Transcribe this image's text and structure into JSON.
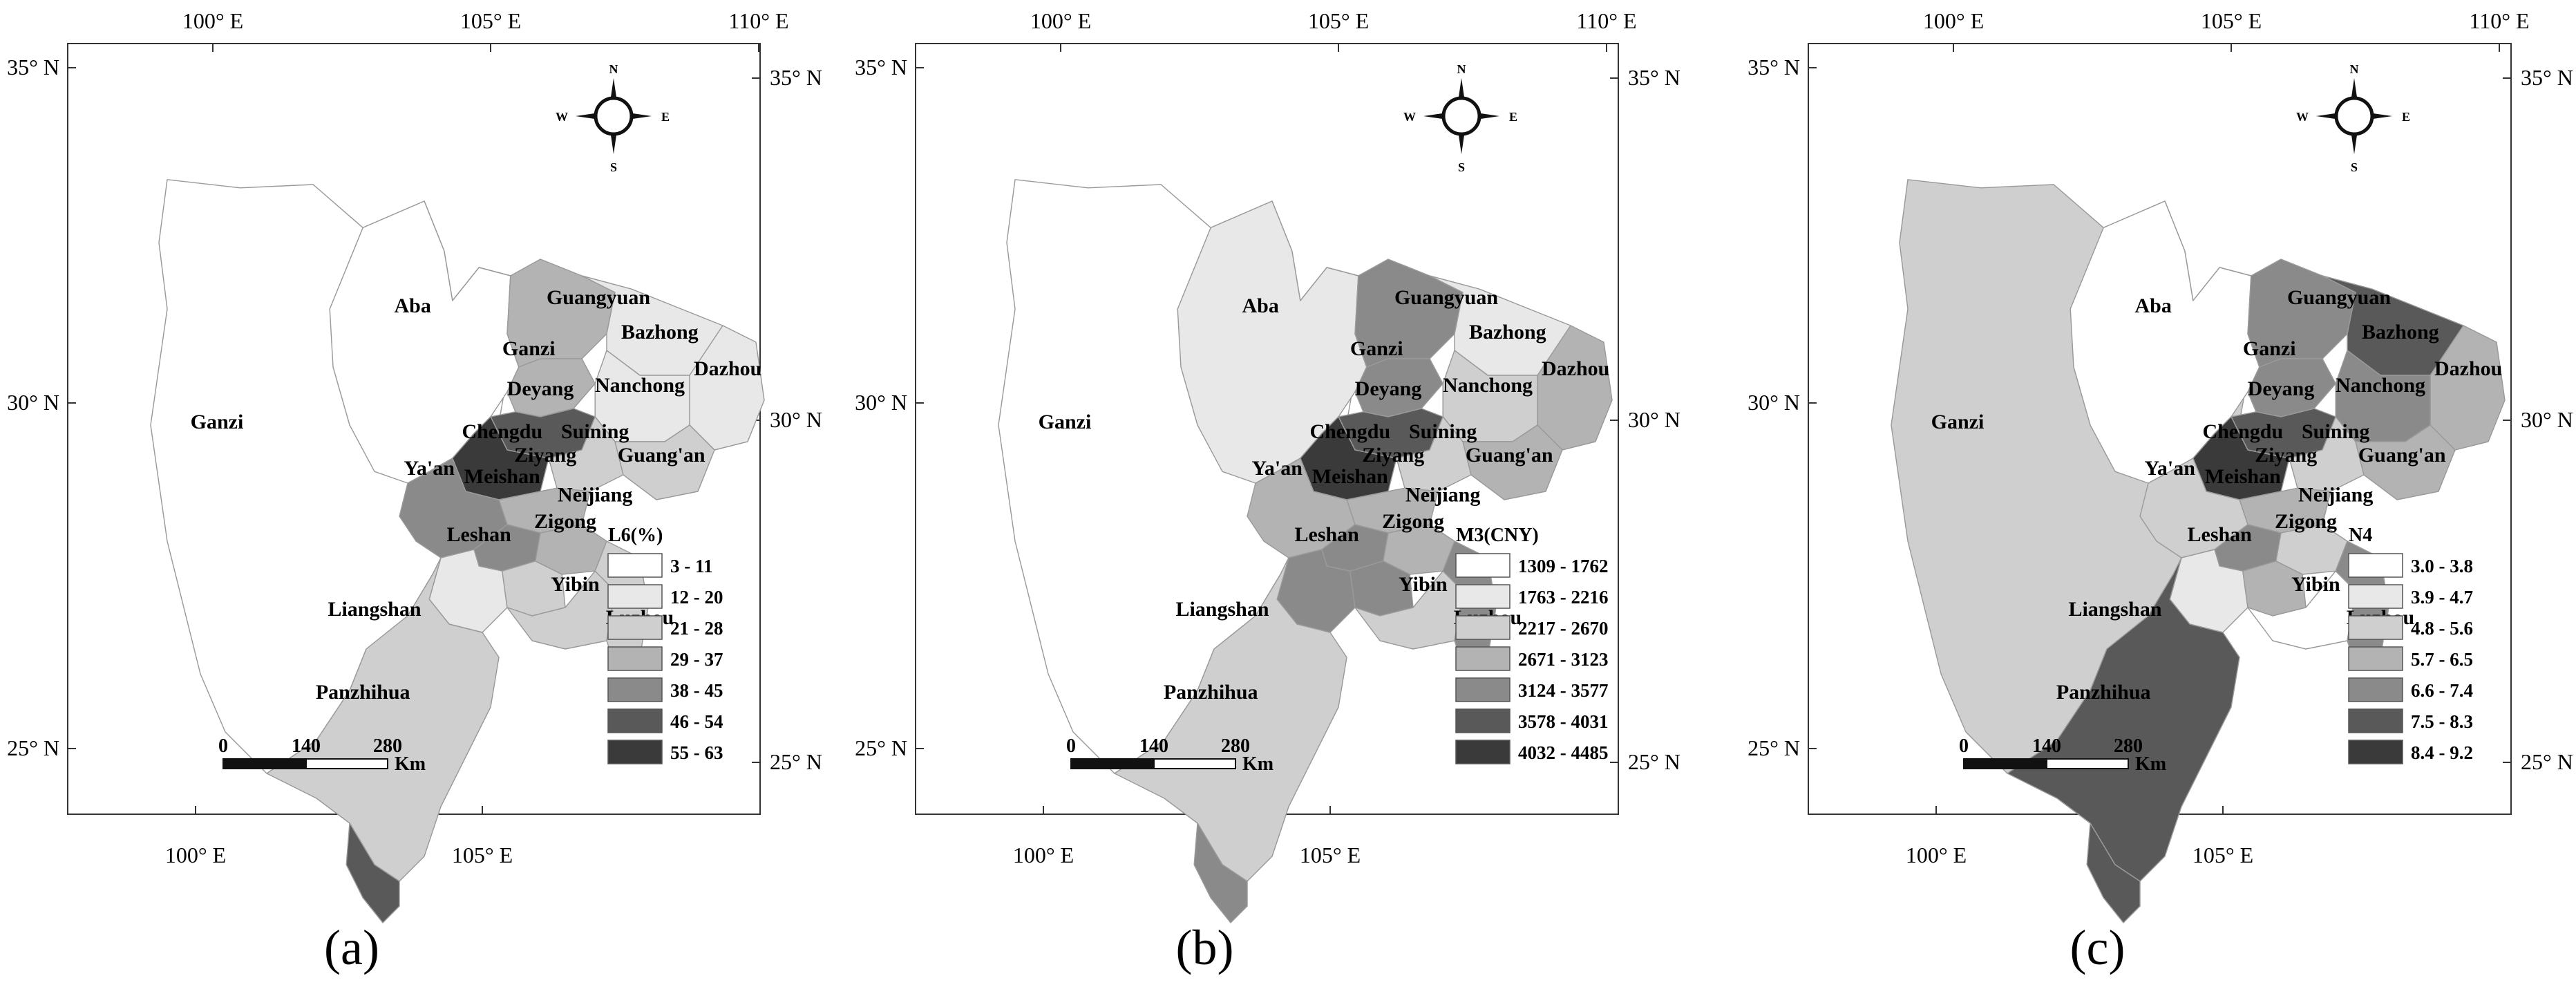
{
  "panels": [
    {
      "label": "(a)",
      "legend_title": "L6(%)",
      "classes": [
        "3 - 11",
        "12 - 20",
        "21 - 28",
        "29 - 37",
        "38 - 45",
        "46 - 54",
        "55 - 63"
      ],
      "top_lon_ticks": [
        "100° E",
        "105° E",
        "110° E"
      ],
      "bottom_lon_ticks": [
        "100° E",
        "105° E"
      ],
      "left_lat_ticks": [
        "35° N",
        "30° N",
        "25° N"
      ],
      "right_lat_ticks": [
        "35° N",
        "30° N",
        "25° N"
      ],
      "region_class": {
        "Ganzi": 0,
        "Aba": 0,
        "Guangyuan": 3,
        "Bazhong": 1,
        "Dazhou": 1,
        "Nanchong": 1,
        "Mianyang": 3,
        "Deyang": 5,
        "Chengdu": 6,
        "Suining": 2,
        "Ziyang": 3,
        "Guangan": 2,
        "Yaan": 4,
        "Meishan": 4,
        "Neijiang": 3,
        "Leshan": 1,
        "Zigong": 2,
        "Yibin": 2,
        "Luzhou": 2,
        "Liangshan": 2,
        "Panzhihua": 5
      }
    },
    {
      "label": "(b)",
      "legend_title": "M3(CNY)",
      "classes": [
        "1309 - 1762",
        "1763 - 2216",
        "2217 - 2670",
        "2671 - 3123",
        "3124 - 3577",
        "3578 - 4031",
        "4032 - 4485"
      ],
      "top_lon_ticks": [
        "100° E",
        "105° E",
        "110° E"
      ],
      "bottom_lon_ticks": [
        "100° E",
        "105° E"
      ],
      "left_lat_ticks": [
        "35° N",
        "30° N",
        "25° N"
      ],
      "right_lat_ticks": [
        "35° N",
        "30° N",
        "25° N"
      ],
      "region_class": {
        "Ganzi": 0,
        "Aba": 1,
        "Guangyuan": 4,
        "Bazhong": 1,
        "Dazhou": 3,
        "Nanchong": 2,
        "Mianyang": 4,
        "Deyang": 5,
        "Chengdu": 6,
        "Suining": 2,
        "Ziyang": 3,
        "Guangan": 3,
        "Yaan": 3,
        "Meishan": 4,
        "Neijiang": 3,
        "Leshan": 4,
        "Zigong": 4,
        "Yibin": 2,
        "Luzhou": 4,
        "Liangshan": 2,
        "Panzhihua": 4
      }
    },
    {
      "label": "(c)",
      "legend_title": "N4",
      "classes": [
        "3.0 - 3.8",
        "3.9 - 4.7",
        "4.8 - 5.6",
        "5.7 - 6.5",
        "6.6 - 7.4",
        "7.5 - 8.3",
        "8.4 - 9.2"
      ],
      "top_lon_ticks": [
        "100° E",
        "105° E",
        "110° E"
      ],
      "bottom_lon_ticks": [
        "100° E",
        "105° E"
      ],
      "left_lat_ticks": [
        "35° N",
        "30° N",
        "25° N"
      ],
      "right_lat_ticks": [
        "35° N",
        "30° N",
        "25° N"
      ],
      "region_class": {
        "Ganzi": 2,
        "Aba": 0,
        "Guangyuan": 4,
        "Bazhong": 5,
        "Dazhou": 3,
        "Nanchong": 4,
        "Mianyang": 4,
        "Deyang": 5,
        "Chengdu": 6,
        "Suining": 2,
        "Ziyang": 3,
        "Guangan": 3,
        "Yaan": 2,
        "Meishan": 4,
        "Neijiang": 2,
        "Leshan": 1,
        "Zigong": 3,
        "Yibin": 0,
        "Luzhou": 4,
        "Liangshan": 5,
        "Panzhihua": 5
      }
    }
  ],
  "city_labels": {
    "Ganzi_west": "Ganzi",
    "Aba": "Aba",
    "Guangyuan": "Guangyuan",
    "Bazhong": "Bazhong",
    "Dazhou": "Dazhou",
    "Ganzi_mid": "Ganzi",
    "Nanchong": "Nanchong",
    "Deyang": "Deyang",
    "Chengdu": "Chengdu",
    "Suining": "Suining",
    "Ziyang": "Ziyang",
    "Guangan": "Guang'an",
    "Yaan": "Ya'an",
    "Meishan": "Meishan",
    "Neijiang": "Neijiang",
    "Leshan": "Leshan",
    "Zigong": "Zigong",
    "Yibin": "Yibin",
    "Luzhou": "Luzhou",
    "Liangshan": "Liangshan",
    "Panzhihua": "Panzhihua"
  },
  "scale_bar": {
    "ticks": [
      "0",
      "140",
      "280"
    ],
    "unit": "Km"
  },
  "compass": {
    "n": "N",
    "s": "S",
    "e": "E",
    "w": "W"
  },
  "class_colors": [
    "#ffffff",
    "#e8e8e8",
    "#cfcfcf",
    "#b3b3b3",
    "#8a8a8a",
    "#595959",
    "#3a3a3a"
  ],
  "stroke_color": "#9a9a9a"
}
